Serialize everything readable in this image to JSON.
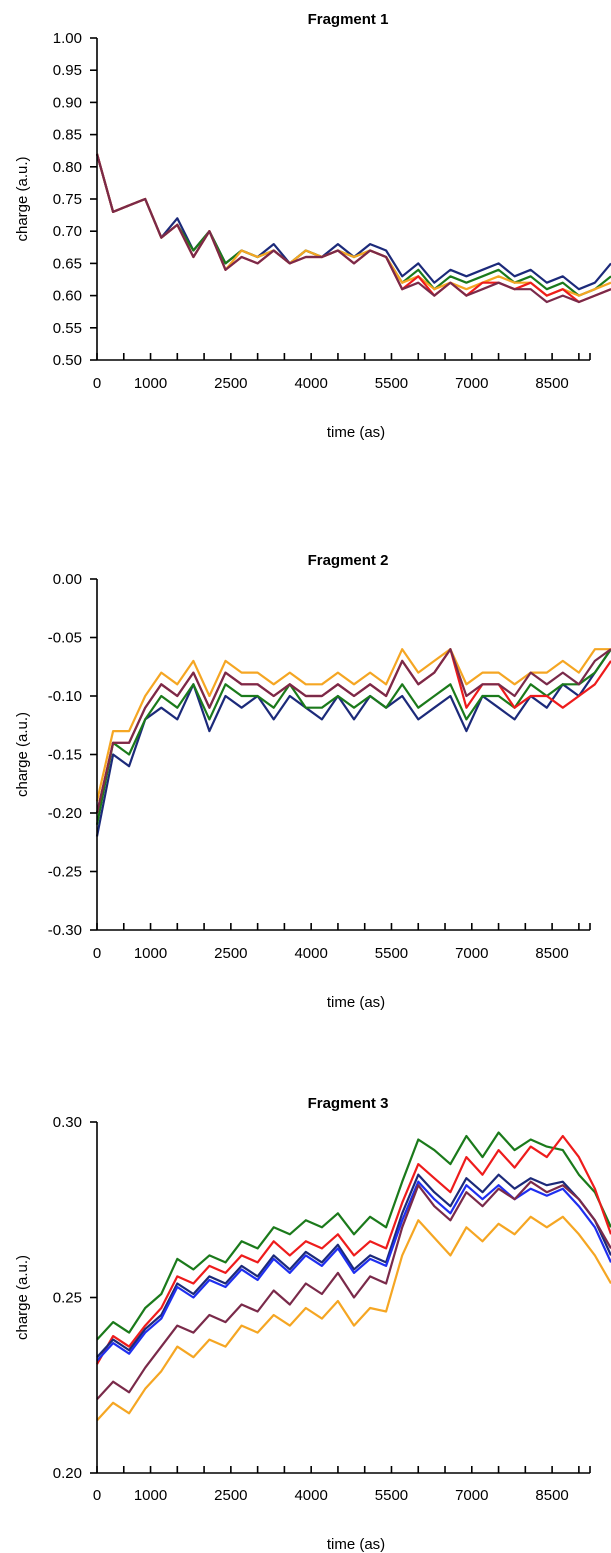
{
  "colors": {
    "dark-blue": "#1c2a7a",
    "blue": "#1f2ff0",
    "green": "#1b7a1b",
    "red": "#ee1c1c",
    "orange": "#f5a623",
    "maroon": "#7a2a4a"
  },
  "chart_data": [
    {
      "type": "line",
      "title": "Fragment 1",
      "xlabel": "time (as)",
      "ylabel": "charge (a.u.)",
      "xlim": [
        0,
        9600
      ],
      "ylim": [
        0.5,
        1.0
      ],
      "x_tick_labels": [
        "0",
        "1000",
        "2500",
        "4000",
        "5500",
        "7000",
        "8500"
      ],
      "x_tick_values": [
        0,
        1000,
        2500,
        4000,
        5500,
        7000,
        8500
      ],
      "minor_x_ticks": [
        500,
        1500,
        2000,
        3000,
        3500,
        4500,
        5000,
        6000,
        6500,
        7500,
        8000,
        9000
      ],
      "y_tick_labels": [
        "0.50",
        "0.55",
        "0.60",
        "0.65",
        "0.70",
        "0.75",
        "0.80",
        "0.85",
        "0.90",
        "0.95",
        "1.00"
      ],
      "y_tick_values": [
        0.5,
        0.55,
        0.6,
        0.65,
        0.7,
        0.75,
        0.8,
        0.85,
        0.9,
        0.95,
        1.0
      ],
      "grid": false,
      "x": [
        0,
        300,
        600,
        900,
        1200,
        1500,
        1800,
        2100,
        2400,
        2700,
        3000,
        3300,
        3600,
        3900,
        4200,
        4500,
        4800,
        5100,
        5400,
        5700,
        6000,
        6300,
        6600,
        6900,
        7200,
        7500,
        7800,
        8100,
        8400,
        8700,
        9000,
        9300,
        9600
      ],
      "series": [
        {
          "color": "dark-blue",
          "values": [
            0.82,
            0.73,
            0.74,
            0.75,
            0.69,
            0.72,
            0.67,
            0.7,
            0.65,
            0.67,
            0.66,
            0.68,
            0.65,
            0.67,
            0.66,
            0.68,
            0.66,
            0.68,
            0.67,
            0.63,
            0.65,
            0.62,
            0.64,
            0.63,
            0.64,
            0.65,
            0.63,
            0.64,
            0.62,
            0.63,
            0.61,
            0.62,
            0.65
          ]
        },
        {
          "color": "green",
          "values": [
            0.82,
            0.73,
            0.74,
            0.75,
            0.69,
            0.71,
            0.67,
            0.7,
            0.65,
            0.67,
            0.66,
            0.67,
            0.65,
            0.67,
            0.66,
            0.67,
            0.66,
            0.67,
            0.66,
            0.62,
            0.64,
            0.61,
            0.63,
            0.62,
            0.63,
            0.64,
            0.62,
            0.63,
            0.61,
            0.62,
            0.6,
            0.61,
            0.63
          ]
        },
        {
          "color": "orange",
          "values": [
            0.82,
            0.73,
            0.74,
            0.75,
            0.69,
            0.71,
            0.66,
            0.7,
            0.64,
            0.67,
            0.66,
            0.67,
            0.65,
            0.67,
            0.66,
            0.67,
            0.66,
            0.67,
            0.66,
            0.62,
            0.63,
            0.61,
            0.62,
            0.61,
            0.62,
            0.63,
            0.62,
            0.62,
            0.6,
            0.61,
            0.6,
            0.61,
            0.62
          ]
        },
        {
          "color": "red",
          "values": [
            0.82,
            0.73,
            0.74,
            0.75,
            0.69,
            0.71,
            0.66,
            0.7,
            0.64,
            0.66,
            0.65,
            0.67,
            0.65,
            0.66,
            0.66,
            0.67,
            0.65,
            0.67,
            0.66,
            0.61,
            0.63,
            0.6,
            0.62,
            0.6,
            0.62,
            0.62,
            0.61,
            0.62,
            0.6,
            0.61,
            0.59,
            0.6,
            0.61
          ]
        },
        {
          "color": "maroon",
          "values": [
            0.82,
            0.73,
            0.74,
            0.75,
            0.69,
            0.71,
            0.66,
            0.7,
            0.64,
            0.66,
            0.65,
            0.67,
            0.65,
            0.66,
            0.66,
            0.67,
            0.65,
            0.67,
            0.66,
            0.61,
            0.62,
            0.6,
            0.62,
            0.6,
            0.61,
            0.62,
            0.61,
            0.61,
            0.59,
            0.6,
            0.59,
            0.6,
            0.61
          ]
        }
      ]
    },
    {
      "type": "line",
      "title": "Fragment 2",
      "xlabel": "time (as)",
      "ylabel": "charge (a.u.)",
      "xlim": [
        0,
        9600
      ],
      "ylim": [
        -0.3,
        0.0
      ],
      "x_tick_labels": [
        "0",
        "1000",
        "2500",
        "4000",
        "5500",
        "7000",
        "8500"
      ],
      "x_tick_values": [
        0,
        1000,
        2500,
        4000,
        5500,
        7000,
        8500
      ],
      "minor_x_ticks": [
        500,
        1500,
        2000,
        3000,
        3500,
        4500,
        5000,
        6000,
        6500,
        7500,
        8000,
        9000
      ],
      "y_tick_labels": [
        "-0.30",
        "-0.25",
        "-0.20",
        "-0.15",
        "-0.10",
        "-0.05",
        "0.00"
      ],
      "y_tick_values": [
        -0.3,
        -0.25,
        -0.2,
        -0.15,
        -0.1,
        -0.05,
        0.0
      ],
      "grid": false,
      "x": [
        0,
        300,
        600,
        900,
        1200,
        1500,
        1800,
        2100,
        2400,
        2700,
        3000,
        3300,
        3600,
        3900,
        4200,
        4500,
        4800,
        5100,
        5400,
        5700,
        6000,
        6300,
        6600,
        6900,
        7200,
        7500,
        7800,
        8100,
        8400,
        8700,
        9000,
        9300,
        9600
      ],
      "series": [
        {
          "color": "dark-blue",
          "values": [
            -0.22,
            -0.15,
            -0.16,
            -0.12,
            -0.11,
            -0.12,
            -0.09,
            -0.13,
            -0.1,
            -0.11,
            -0.1,
            -0.12,
            -0.1,
            -0.11,
            -0.12,
            -0.1,
            -0.12,
            -0.1,
            -0.11,
            -0.1,
            -0.12,
            -0.11,
            -0.1,
            -0.13,
            -0.1,
            -0.11,
            -0.12,
            -0.1,
            -0.11,
            -0.09,
            -0.1,
            -0.08,
            -0.06
          ]
        },
        {
          "color": "green",
          "values": [
            -0.21,
            -0.14,
            -0.15,
            -0.12,
            -0.1,
            -0.11,
            -0.09,
            -0.12,
            -0.09,
            -0.1,
            -0.1,
            -0.11,
            -0.09,
            -0.11,
            -0.11,
            -0.1,
            -0.11,
            -0.1,
            -0.11,
            -0.09,
            -0.11,
            -0.1,
            -0.09,
            -0.12,
            -0.1,
            -0.1,
            -0.11,
            -0.09,
            -0.1,
            -0.09,
            -0.09,
            -0.08,
            -0.06
          ]
        },
        {
          "color": "red",
          "values": [
            -0.2,
            -0.14,
            -0.14,
            -0.11,
            -0.09,
            -0.1,
            -0.08,
            -0.11,
            -0.08,
            -0.09,
            -0.09,
            -0.1,
            -0.09,
            -0.1,
            -0.1,
            -0.09,
            -0.1,
            -0.09,
            -0.1,
            -0.07,
            -0.09,
            -0.08,
            -0.06,
            -0.11,
            -0.09,
            -0.09,
            -0.11,
            -0.1,
            -0.1,
            -0.11,
            -0.1,
            -0.09,
            -0.07
          ]
        },
        {
          "color": "orange",
          "values": [
            -0.19,
            -0.13,
            -0.13,
            -0.1,
            -0.08,
            -0.09,
            -0.07,
            -0.1,
            -0.07,
            -0.08,
            -0.08,
            -0.09,
            -0.08,
            -0.09,
            -0.09,
            -0.08,
            -0.09,
            -0.08,
            -0.09,
            -0.06,
            -0.08,
            -0.07,
            -0.06,
            -0.09,
            -0.08,
            -0.08,
            -0.09,
            -0.08,
            -0.08,
            -0.07,
            -0.08,
            -0.06,
            -0.06
          ]
        },
        {
          "color": "maroon",
          "values": [
            -0.2,
            -0.14,
            -0.14,
            -0.11,
            -0.09,
            -0.1,
            -0.08,
            -0.11,
            -0.08,
            -0.09,
            -0.09,
            -0.1,
            -0.09,
            -0.1,
            -0.1,
            -0.09,
            -0.1,
            -0.09,
            -0.1,
            -0.07,
            -0.09,
            -0.08,
            -0.06,
            -0.1,
            -0.09,
            -0.09,
            -0.1,
            -0.08,
            -0.09,
            -0.08,
            -0.09,
            -0.07,
            -0.06
          ]
        }
      ]
    },
    {
      "type": "line",
      "title": "Fragment 3",
      "xlabel": "time (as)",
      "ylabel": "charge (a.u.)",
      "xlim": [
        0,
        9600
      ],
      "ylim": [
        0.2,
        0.3
      ],
      "x_tick_labels": [
        "0",
        "1000",
        "2500",
        "4000",
        "5500",
        "7000",
        "8500"
      ],
      "x_tick_values": [
        0,
        1000,
        2500,
        4000,
        5500,
        7000,
        8500
      ],
      "minor_x_ticks": [
        500,
        1500,
        2000,
        3000,
        3500,
        4500,
        5000,
        6000,
        6500,
        7500,
        8000,
        9000
      ],
      "y_tick_labels": [
        "0.20",
        "0.25",
        "0.30"
      ],
      "y_tick_values": [
        0.2,
        0.25,
        0.3
      ],
      "grid": false,
      "x": [
        0,
        300,
        600,
        900,
        1200,
        1500,
        1800,
        2100,
        2400,
        2700,
        3000,
        3300,
        3600,
        3900,
        4200,
        4500,
        4800,
        5100,
        5400,
        5700,
        6000,
        6300,
        6600,
        6900,
        7200,
        7500,
        7800,
        8100,
        8400,
        8700,
        9000,
        9300,
        9600
      ],
      "series": [
        {
          "color": "green",
          "values": [
            0.238,
            0.243,
            0.24,
            0.247,
            0.251,
            0.261,
            0.258,
            0.262,
            0.26,
            0.266,
            0.264,
            0.27,
            0.268,
            0.272,
            0.27,
            0.274,
            0.268,
            0.273,
            0.27,
            0.283,
            0.295,
            0.292,
            0.288,
            0.296,
            0.29,
            0.297,
            0.292,
            0.295,
            0.293,
            0.292,
            0.285,
            0.28,
            0.27
          ]
        },
        {
          "color": "red",
          "values": [
            0.231,
            0.239,
            0.236,
            0.242,
            0.247,
            0.256,
            0.254,
            0.259,
            0.257,
            0.262,
            0.26,
            0.266,
            0.262,
            0.266,
            0.264,
            0.268,
            0.262,
            0.266,
            0.264,
            0.277,
            0.288,
            0.284,
            0.28,
            0.29,
            0.285,
            0.292,
            0.287,
            0.293,
            0.29,
            0.296,
            0.29,
            0.281,
            0.268
          ]
        },
        {
          "color": "dark-blue",
          "values": [
            0.233,
            0.238,
            0.235,
            0.241,
            0.245,
            0.254,
            0.251,
            0.256,
            0.254,
            0.259,
            0.256,
            0.262,
            0.258,
            0.263,
            0.26,
            0.265,
            0.258,
            0.262,
            0.26,
            0.274,
            0.285,
            0.28,
            0.276,
            0.284,
            0.28,
            0.285,
            0.281,
            0.284,
            0.282,
            0.283,
            0.278,
            0.272,
            0.262
          ]
        },
        {
          "color": "blue",
          "values": [
            0.232,
            0.237,
            0.234,
            0.24,
            0.244,
            0.253,
            0.25,
            0.255,
            0.253,
            0.258,
            0.255,
            0.261,
            0.257,
            0.262,
            0.259,
            0.264,
            0.257,
            0.261,
            0.259,
            0.272,
            0.283,
            0.278,
            0.274,
            0.282,
            0.278,
            0.282,
            0.278,
            0.281,
            0.279,
            0.281,
            0.276,
            0.27,
            0.26
          ]
        },
        {
          "color": "maroon",
          "values": [
            0.221,
            0.226,
            0.223,
            0.23,
            0.236,
            0.242,
            0.24,
            0.245,
            0.243,
            0.248,
            0.246,
            0.252,
            0.248,
            0.254,
            0.251,
            0.257,
            0.25,
            0.256,
            0.254,
            0.27,
            0.282,
            0.276,
            0.272,
            0.28,
            0.276,
            0.281,
            0.278,
            0.283,
            0.28,
            0.282,
            0.278,
            0.272,
            0.264
          ]
        },
        {
          "color": "orange",
          "values": [
            0.215,
            0.22,
            0.217,
            0.224,
            0.229,
            0.236,
            0.233,
            0.238,
            0.236,
            0.242,
            0.24,
            0.245,
            0.242,
            0.247,
            0.244,
            0.249,
            0.242,
            0.247,
            0.246,
            0.262,
            0.272,
            0.267,
            0.262,
            0.27,
            0.266,
            0.271,
            0.268,
            0.273,
            0.27,
            0.273,
            0.268,
            0.262,
            0.254
          ]
        }
      ]
    }
  ]
}
